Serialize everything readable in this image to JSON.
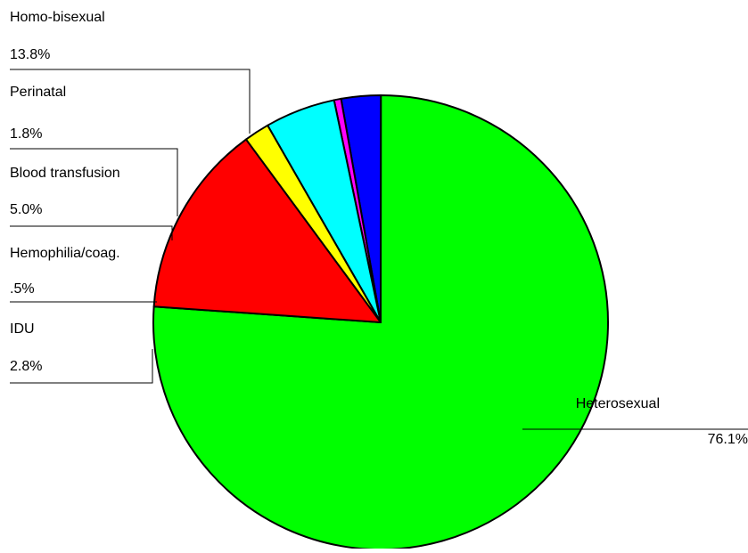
{
  "chart_data": {
    "type": "pie",
    "title": "",
    "slices": [
      {
        "label": "Heterosexual",
        "value": 76.1,
        "value_label": "76.1%",
        "color": "#00ff00"
      },
      {
        "label": "IDU",
        "value": 2.8,
        "value_label": "2.8%",
        "color": "#0000ff"
      },
      {
        "label": "Hemophilia/coag.",
        "value": 0.5,
        "value_label": ".5%",
        "color": "#ff00ff"
      },
      {
        "label": "Blood transfusion",
        "value": 5.0,
        "value_label": "5.0%",
        "color": "#00ffff"
      },
      {
        "label": "Perinatal",
        "value": 1.8,
        "value_label": "1.8%",
        "color": "#ffff00"
      },
      {
        "label": "Homo-bisexual",
        "value": 13.8,
        "value_label": "13.8%",
        "color": "#ff0000"
      }
    ]
  }
}
